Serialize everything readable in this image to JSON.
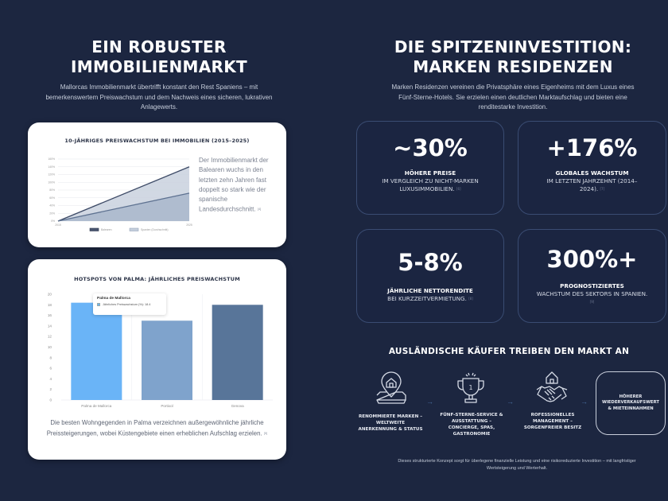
{
  "left": {
    "title_line1": "EIN ROBUSTER",
    "title_line2": "IMMOBILIENMARKT",
    "intro": "Mallorcas Immobilienmarkt übertrifft konstant den Rest Spaniens – mit bemerkenswertem Preiswachstum und dem Nachweis eines sicheren, lukrativen Anlagewerts.",
    "line_card": {
      "title": "10-JÄHRIGES PREISWACHSTUM BEI IMMOBILIEN (2015–2025)",
      "side_text": "Der Immobilienmarkt der Balearen wuchs in den letzten zehn Jahren fast doppelt so stark wie der spanische Landesdurchschnitt.",
      "side_cite": "[4]"
    },
    "bar_card": {
      "title": "HOTSPOTS VON PALMA: JÄHRLICHES PREISWACHSTUM",
      "tooltip_title": "Palma de Mallorca",
      "tooltip_label": "Jährliches Preiswachstum (%): 18.4",
      "caption": "Die besten Wohngegenden in Palma verzeichnen außergewöhnliche jährliche Preissteigerungen, wobei Küstengebiete einen erheblichen Aufschlag erzielen.",
      "caption_cite": "[5]"
    }
  },
  "right": {
    "title_line1": "DIE SPITZENINVESTITION:",
    "title_line2": "MARKEN RESIDENZEN",
    "intro": "Marken Residenzen vereinen die Privatsphäre eines Eigenheims mit dem Luxus eines Fünf-Sterne-Hotels. Sie erzielen einen deutlichen Marktaufschlag und bieten eine renditestarke Investition.",
    "stats": [
      {
        "value": "~30%",
        "bold": "HÖHERE PREISE",
        "rest": "IM VERGLEICH ZU NICHT-MARKEN LUXUSIMMOBILIEN.",
        "cite": "[6]"
      },
      {
        "value": "+176%",
        "bold": "GLOBALES WACHSTUM",
        "rest": "IM LETZTEN JAHRZEHNT (2014–2024).",
        "cite": "[7]"
      },
      {
        "value": "5-8%",
        "bold": "JÄHRLICHE NETTORENDITE",
        "rest": "BEI KURZZEITVERMIETUNG.",
        "cite": "[8]"
      },
      {
        "value": "300%+",
        "bold": "PROGNOSTIZIERTES",
        "rest": "WACHSTUM DES SEKTORS IN SPANIEN.",
        "cite": "[9]"
      }
    ],
    "flow": {
      "heading": "AUSLÄNDISCHE KÄUFER TREIBEN DEN MARKT AN",
      "steps": [
        {
          "icon": "location-home-icon",
          "label": "RENOMMIERTE MARKEN – WELTWEITE ANERKENNUNG & STATUS"
        },
        {
          "icon": "trophy-icon",
          "label": "FÜNF-STERNE-SERVICE & AUSSTATTUNG – CONCIERGE, SPAS, GASTRONOMIE"
        },
        {
          "icon": "handshake-home-icon",
          "label": "ROFESSIONELLES MANAGEMENT – SORGENFREIER BESITZ"
        }
      ],
      "final": "HÖHERER WIEDERVERKAUFSWERT & MIETEINNAHMEN",
      "trophy_number": "1"
    },
    "footer": "Dieses strukturierte Konzept sorgt für überlegene finanzielle Leistung und eine risikoreduzierte Investition – mit langfristiger Wertsteigerung und Werterhalt."
  },
  "colors": {
    "background": "#1c2640",
    "balearen": "#3d4a66",
    "spanien": "#5e7291",
    "bar_palma": "#6ab4f7",
    "bar_portixol": "#7fa3cc",
    "bar_genova": "#587599"
  },
  "chart_data": [
    {
      "type": "area",
      "title": "10-JÄHRIGES PREISWACHSTUM BEI IMMOBILIEN (2015–2025)",
      "x": [
        "2015",
        "2025"
      ],
      "xlabel": "",
      "ylabel": "",
      "ylim": [
        0,
        160
      ],
      "yticks": [
        "0%",
        "20%",
        "40%",
        "60%",
        "80%",
        "100%",
        "120%",
        "140%",
        "160%"
      ],
      "grid": true,
      "legend": "bottom",
      "series": [
        {
          "name": "Balearen",
          "values": [
            0,
            140
          ]
        },
        {
          "name": "Spanien (Durchschnitt)",
          "values": [
            0,
            72
          ]
        }
      ]
    },
    {
      "type": "bar",
      "title": "HOTSPOTS VON PALMA: JÄHRLICHES PREISWACHSTUM",
      "categories": [
        "Palma de Mallorca",
        "Portixol",
        "Genova"
      ],
      "values": [
        18.4,
        15,
        18
      ],
      "ylim": [
        0,
        20
      ],
      "yticks": [
        "0",
        "2",
        "4",
        "6",
        "8",
        "10",
        "12",
        "14",
        "16",
        "18",
        "20"
      ],
      "series_name": "Jährliches Preiswachstum (%)",
      "grid": true
    }
  ]
}
